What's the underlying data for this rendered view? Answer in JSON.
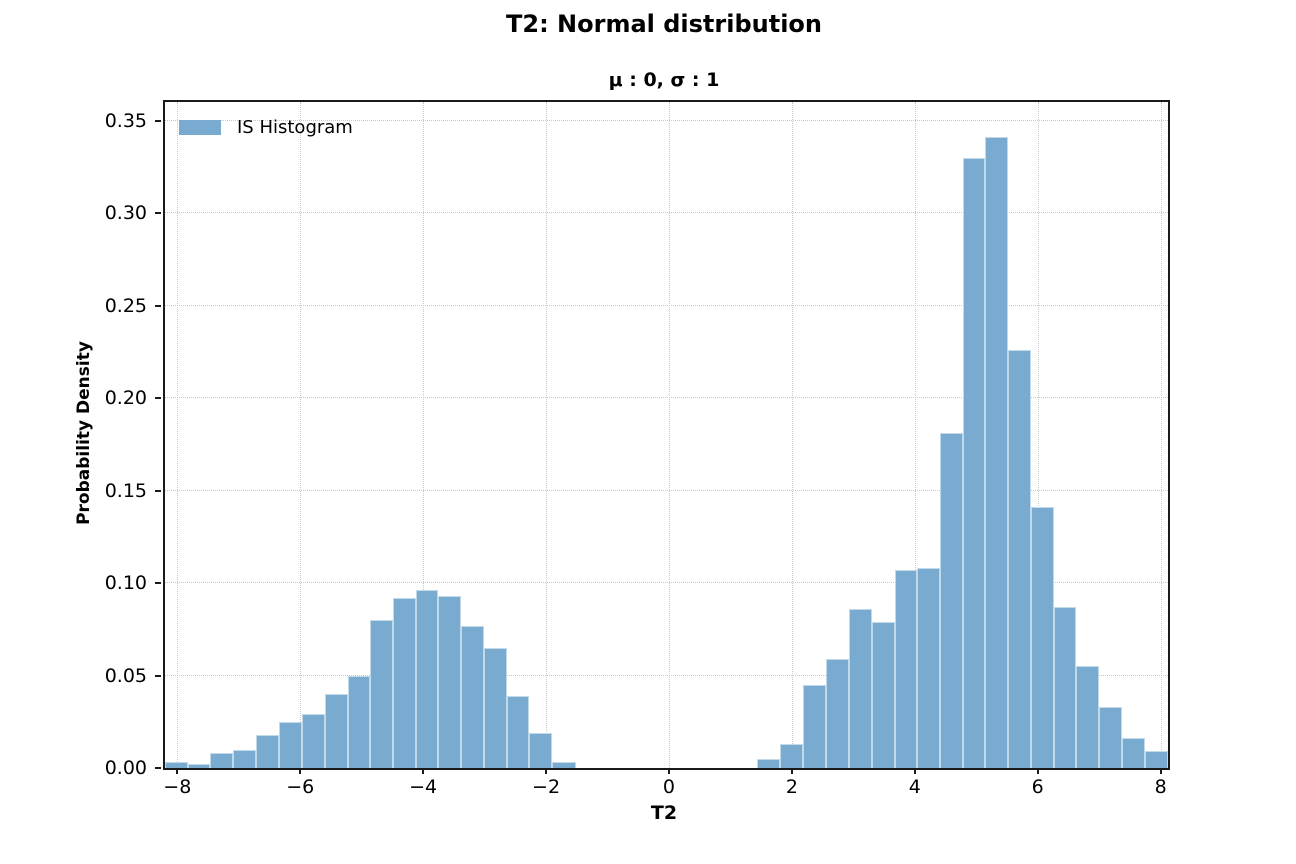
{
  "chart_data": {
    "type": "bar",
    "variant": "histogram",
    "title": "T2: Normal distribution",
    "subtitle": "μ : 0, σ : 1",
    "xlabel": "T2",
    "ylabel": "Probability Density",
    "legend": [
      "IS Histogram"
    ],
    "legend_position": "upper left",
    "bar_color": "#79ABD0",
    "grid": "dotted",
    "xlim": [
      -8.2,
      8.12
    ],
    "ylim": [
      0,
      0.36
    ],
    "bin_width": 0.371,
    "bin_edges": [
      -8.2,
      -7.83,
      -7.46,
      -7.09,
      -6.72,
      -6.35,
      -5.97,
      -5.6,
      -5.23,
      -4.86,
      -4.49,
      -4.12,
      -3.75,
      -3.38,
      -3.01,
      -2.64,
      -2.27,
      -1.9,
      -1.52,
      -1.15,
      -0.78,
      -0.41,
      -0.04,
      0.33,
      0.7,
      1.07,
      1.44,
      1.81,
      2.18,
      2.55,
      2.93,
      3.3,
      3.67,
      4.04,
      4.41,
      4.78,
      5.15,
      5.52,
      5.89,
      6.26,
      6.63,
      7.0,
      7.37,
      7.74,
      8.12
    ],
    "values": [
      0.003,
      0.002,
      0.008,
      0.01,
      0.018,
      0.025,
      0.029,
      0.04,
      0.05,
      0.08,
      0.092,
      0.096,
      0.093,
      0.077,
      0.065,
      0.039,
      0.019,
      0.003,
      0,
      0,
      0,
      0,
      0,
      0,
      0,
      0,
      0.005,
      0.013,
      0.045,
      0.059,
      0.086,
      0.079,
      0.107,
      0.108,
      0.181,
      0.33,
      0.341,
      0.226,
      0.141,
      0.087,
      0.055,
      0.033,
      0.016,
      0.009
    ],
    "xticks": {
      "values": [
        -8,
        -6,
        -4,
        -2,
        0,
        2,
        4,
        6,
        8
      ],
      "labels": [
        "−8",
        "−6",
        "−4",
        "−2",
        "0",
        "2",
        "4",
        "6",
        "8"
      ]
    },
    "yticks": {
      "values": [
        0.0,
        0.05,
        0.1,
        0.15,
        0.2,
        0.25,
        0.3,
        0.35
      ],
      "labels": [
        "0.00",
        "0.05",
        "0.10",
        "0.15",
        "0.20",
        "0.25",
        "0.30",
        "0.35"
      ]
    }
  }
}
